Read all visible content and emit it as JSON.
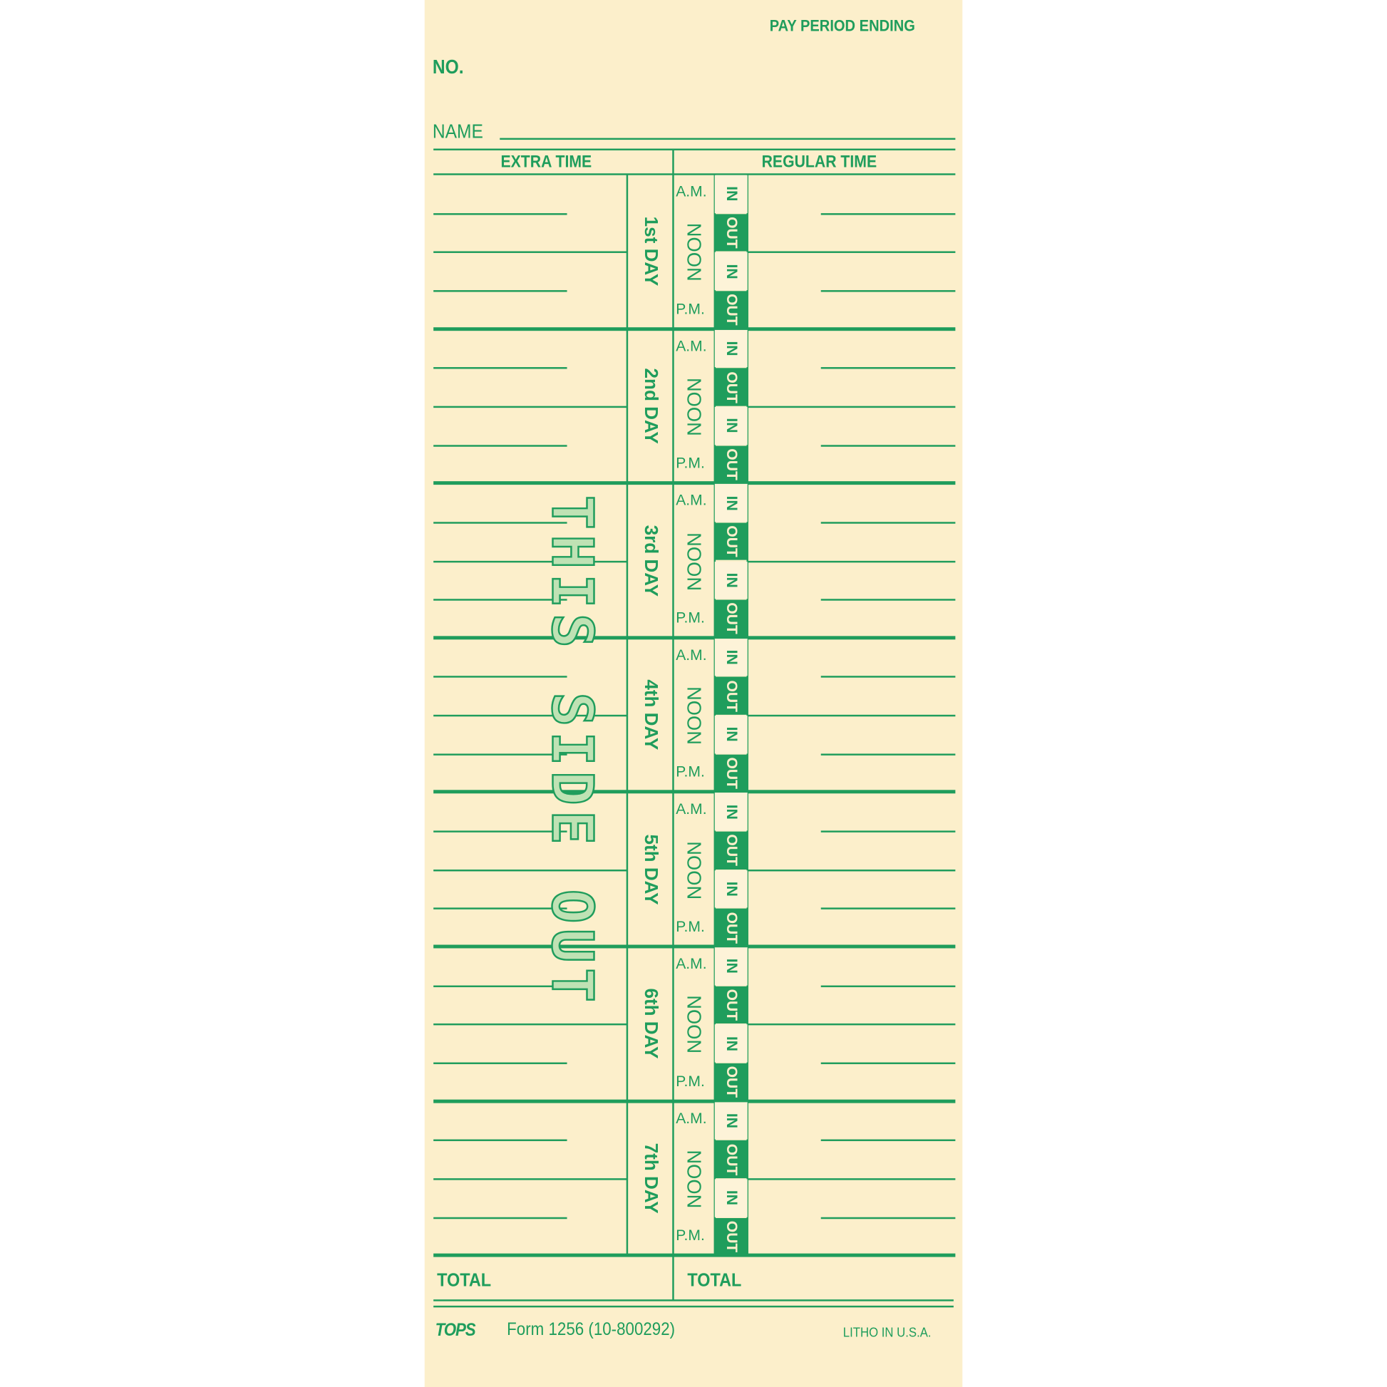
{
  "header": {
    "pay_period_label": "PAY PERIOD ENDING",
    "no_label": "NO.",
    "name_label": "NAME"
  },
  "columns": {
    "extra_time": "EXTRA TIME",
    "regular_time": "REGULAR TIME"
  },
  "days": [
    {
      "label": "1st DAY"
    },
    {
      "label": "2nd DAY"
    },
    {
      "label": "3rd DAY"
    },
    {
      "label": "4th DAY"
    },
    {
      "label": "5th DAY"
    },
    {
      "label": "6th DAY"
    },
    {
      "label": "7th DAY"
    }
  ],
  "slots": {
    "am": "A.M.",
    "noon": "NOON",
    "pm": "P.M.",
    "in": "IN",
    "out": "OUT"
  },
  "totals": {
    "extra": "TOTAL",
    "regular": "TOTAL"
  },
  "watermark": "THIS SIDE OUT",
  "footer": {
    "logo": "TOPS",
    "form": "Form 1256 (10-800292)",
    "litho": "LITHO IN U.S.A."
  },
  "colors": {
    "ink": "#1f9d5c",
    "paper": "#fcefcb"
  }
}
